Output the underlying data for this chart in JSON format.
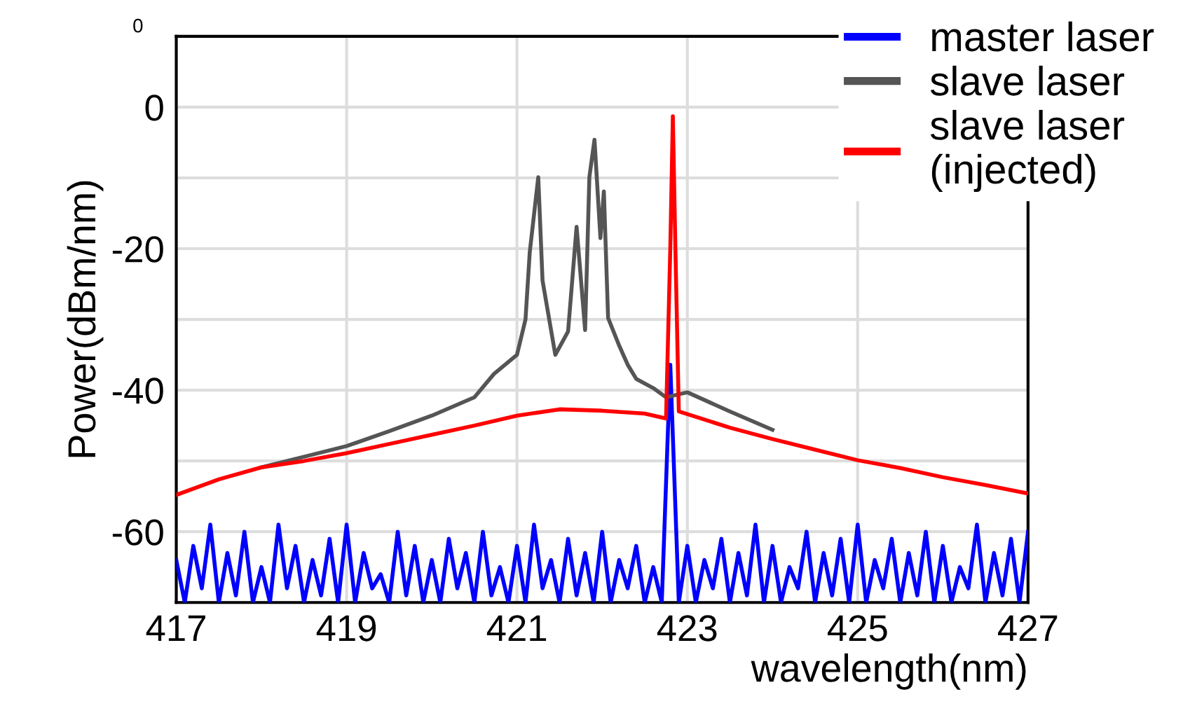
{
  "chart_data": {
    "type": "line",
    "xlabel": "wavelength(nm)",
    "ylabel": "Power(dBm/nm)",
    "annotations": [
      "0"
    ],
    "xlim": [
      417,
      427
    ],
    "xticks": [
      417,
      419,
      421,
      423,
      425,
      427
    ],
    "ylim": [
      -70,
      10
    ],
    "yticks": [
      {
        "value": -70,
        "label": null
      },
      -60,
      {
        "value": -50,
        "label": null
      },
      -40,
      {
        "value": -30,
        "label": null
      },
      -20,
      {
        "value": -10,
        "label": null
      },
      0
    ],
    "grid": true,
    "legend": "top right",
    "marker": "none",
    "line_style": "solid",
    "series": [
      {
        "name": "master laser",
        "color": "#0000ff",
        "x": [
          417.0,
          417.1,
          417.2,
          417.3,
          417.4,
          417.5,
          417.6,
          417.7,
          417.8,
          417.9,
          418.0,
          418.1,
          418.2,
          418.3,
          418.4,
          418.5,
          418.6,
          418.7,
          418.8,
          418.9,
          419.0,
          419.1,
          419.2,
          419.3,
          419.4,
          419.5,
          419.6,
          419.7,
          419.8,
          419.9,
          420.0,
          420.1,
          420.2,
          420.3,
          420.4,
          420.5,
          420.6,
          420.7,
          420.8,
          420.9,
          421.0,
          421.1,
          421.2,
          421.3,
          421.4,
          421.5,
          421.6,
          421.7,
          421.8,
          421.9,
          422.0,
          422.1,
          422.2,
          422.3,
          422.4,
          422.5,
          422.6,
          422.7,
          422.8,
          422.9,
          423.0,
          423.1,
          423.2,
          423.3,
          423.4,
          423.5,
          423.6,
          423.7,
          423.8,
          423.9,
          424.0,
          424.1,
          424.2,
          424.3,
          424.4,
          424.5,
          424.6,
          424.7,
          424.8,
          424.9,
          425.0,
          425.1,
          425.2,
          425.3,
          425.4,
          425.5,
          425.6,
          425.7,
          425.8,
          425.9,
          426.0,
          426.1,
          426.2,
          426.3,
          426.4,
          426.5,
          426.6,
          426.7,
          426.8,
          426.9,
          427.0
        ],
        "values": [
          -64,
          -70,
          -62,
          -68,
          -59,
          -70,
          -63,
          -69,
          -60,
          -70,
          -65,
          -70,
          -59,
          -68,
          -62,
          -70,
          -64,
          -69,
          -61,
          -70,
          -59,
          -70,
          -63,
          -68,
          -66,
          -70,
          -60,
          -69,
          -62,
          -70,
          -64,
          -70,
          -61,
          -68,
          -63,
          -70,
          -60,
          -69,
          -65,
          -70,
          -62,
          -70,
          -59,
          -68,
          -64,
          -70,
          -61,
          -69,
          -63,
          -70,
          -60,
          -70,
          -64,
          -68,
          -62,
          -70,
          -65,
          -70,
          -36.4,
          -70,
          -62,
          -70,
          -64,
          -68,
          -61,
          -70,
          -63,
          -69,
          -59,
          -70,
          -62,
          -70,
          -65,
          -68,
          -60,
          -70,
          -63,
          -69,
          -61,
          -70,
          -59,
          -70,
          -64,
          -68,
          -61,
          -70,
          -63,
          -69,
          -60,
          -70,
          -62,
          -70,
          -65,
          -68,
          -59,
          -70,
          -63,
          -69,
          -61,
          -70,
          -60
        ]
      },
      {
        "name": "slave laser",
        "color": "#555555",
        "x": [
          418.0,
          418.5,
          419.0,
          419.5,
          420.0,
          420.5,
          420.73,
          421.0,
          421.1,
          421.15,
          421.25,
          421.3,
          421.45,
          421.6,
          421.7,
          421.8,
          421.85,
          421.91,
          421.98,
          422.02,
          422.07,
          422.2,
          422.3,
          422.4,
          422.6,
          422.75,
          423.0,
          423.5,
          424.0
        ],
        "values": [
          -50.9,
          -49.4,
          -47.9,
          -45.8,
          -43.6,
          -41,
          -37.7,
          -35,
          -30,
          -20.5,
          -9.9,
          -24.5,
          -35,
          -31.7,
          -16.9,
          -31.5,
          -9.9,
          -4.6,
          -18.5,
          -11.9,
          -29.8,
          -33.7,
          -36.4,
          -38.4,
          -39.7,
          -41,
          -40.3,
          -43,
          -45.6
        ]
      },
      {
        "name": "slave laser\n(injected)",
        "color": "#ff0000",
        "x": [
          417.0,
          417.5,
          418.0,
          418.5,
          419.0,
          419.5,
          420.0,
          420.5,
          421.0,
          421.5,
          422.0,
          422.5,
          422.75,
          422.8,
          422.83,
          422.86,
          422.9,
          423.5,
          424.0,
          424.5,
          425.0,
          425.5,
          426.0,
          426.5,
          427.0
        ],
        "values": [
          -54.8,
          -52.6,
          -50.9,
          -50,
          -48.9,
          -47.6,
          -46.3,
          -45,
          -43.6,
          -42.7,
          -42.9,
          -43.3,
          -44,
          -20,
          -1.3,
          -20,
          -43,
          -45.3,
          -46.9,
          -48.4,
          -49.9,
          -51,
          -52.3,
          -53.4,
          -54.6
        ]
      }
    ]
  }
}
